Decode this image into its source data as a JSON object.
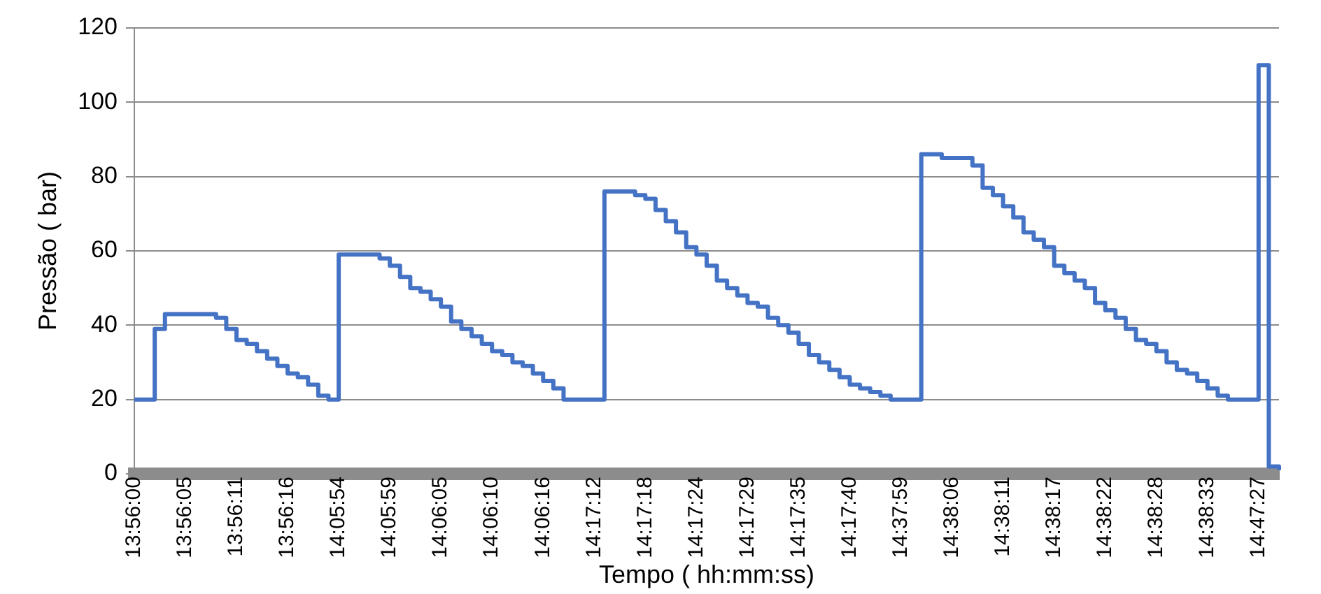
{
  "chart_data": {
    "type": "step",
    "xlabel": "Tempo ( hh:mm:ss)",
    "ylabel": "Pressão ( bar)",
    "categories": [
      "13:56:00",
      null,
      null,
      null,
      null,
      "13:56:05",
      null,
      null,
      null,
      null,
      "13:56:11",
      null,
      null,
      null,
      null,
      "13:56:16",
      null,
      null,
      null,
      null,
      "14:05:54",
      null,
      null,
      null,
      null,
      "14:05:59",
      null,
      null,
      null,
      null,
      "14:06:05",
      null,
      null,
      null,
      null,
      "14:06:10",
      null,
      null,
      null,
      null,
      "14:06:16",
      null,
      null,
      null,
      null,
      "14:17:12",
      null,
      null,
      null,
      null,
      "14:17:18",
      null,
      null,
      null,
      null,
      "14:17:24",
      null,
      null,
      null,
      null,
      "14:17:29",
      null,
      null,
      null,
      null,
      "14:17:35",
      null,
      null,
      null,
      null,
      "14:17:40",
      null,
      null,
      null,
      null,
      "14:37:59",
      null,
      null,
      null,
      null,
      "14:38:06",
      null,
      null,
      null,
      null,
      "14:38:11",
      null,
      null,
      null,
      null,
      "14:38:17",
      null,
      null,
      null,
      null,
      "14:38:22",
      null,
      null,
      null,
      null,
      "14:38:28",
      null,
      null,
      null,
      null,
      "14:38:33",
      null,
      null,
      null,
      null,
      "14:47:27",
      null,
      null
    ],
    "series": [
      {
        "color": "#4472c4",
        "values": [
          20,
          20,
          39,
          43,
          43,
          43,
          43,
          43,
          42,
          39,
          36,
          35,
          33,
          31,
          29,
          27,
          26,
          24,
          21,
          20,
          59,
          59,
          59,
          59,
          58,
          56,
          53,
          50,
          49,
          47,
          45,
          41,
          39,
          37,
          35,
          33,
          32,
          30,
          29,
          27,
          25,
          23,
          20,
          20,
          20,
          20,
          76,
          76,
          76,
          75,
          74,
          71,
          68,
          65,
          61,
          59,
          56,
          52,
          50,
          48,
          46,
          45,
          42,
          40,
          38,
          35,
          32,
          30,
          28,
          26,
          24,
          23,
          22,
          21,
          20,
          20,
          20,
          86,
          86,
          85,
          85,
          85,
          83,
          77,
          75,
          72,
          69,
          65,
          63,
          61,
          56,
          54,
          52,
          50,
          46,
          44,
          42,
          39,
          36,
          35,
          33,
          30,
          28,
          27,
          25,
          23,
          21,
          20,
          20,
          20,
          110,
          2,
          1
        ]
      }
    ],
    "ylim": [
      0,
      120
    ],
    "yticks": [
      0,
      20,
      40,
      60,
      80,
      100,
      120
    ],
    "grid": "y"
  }
}
